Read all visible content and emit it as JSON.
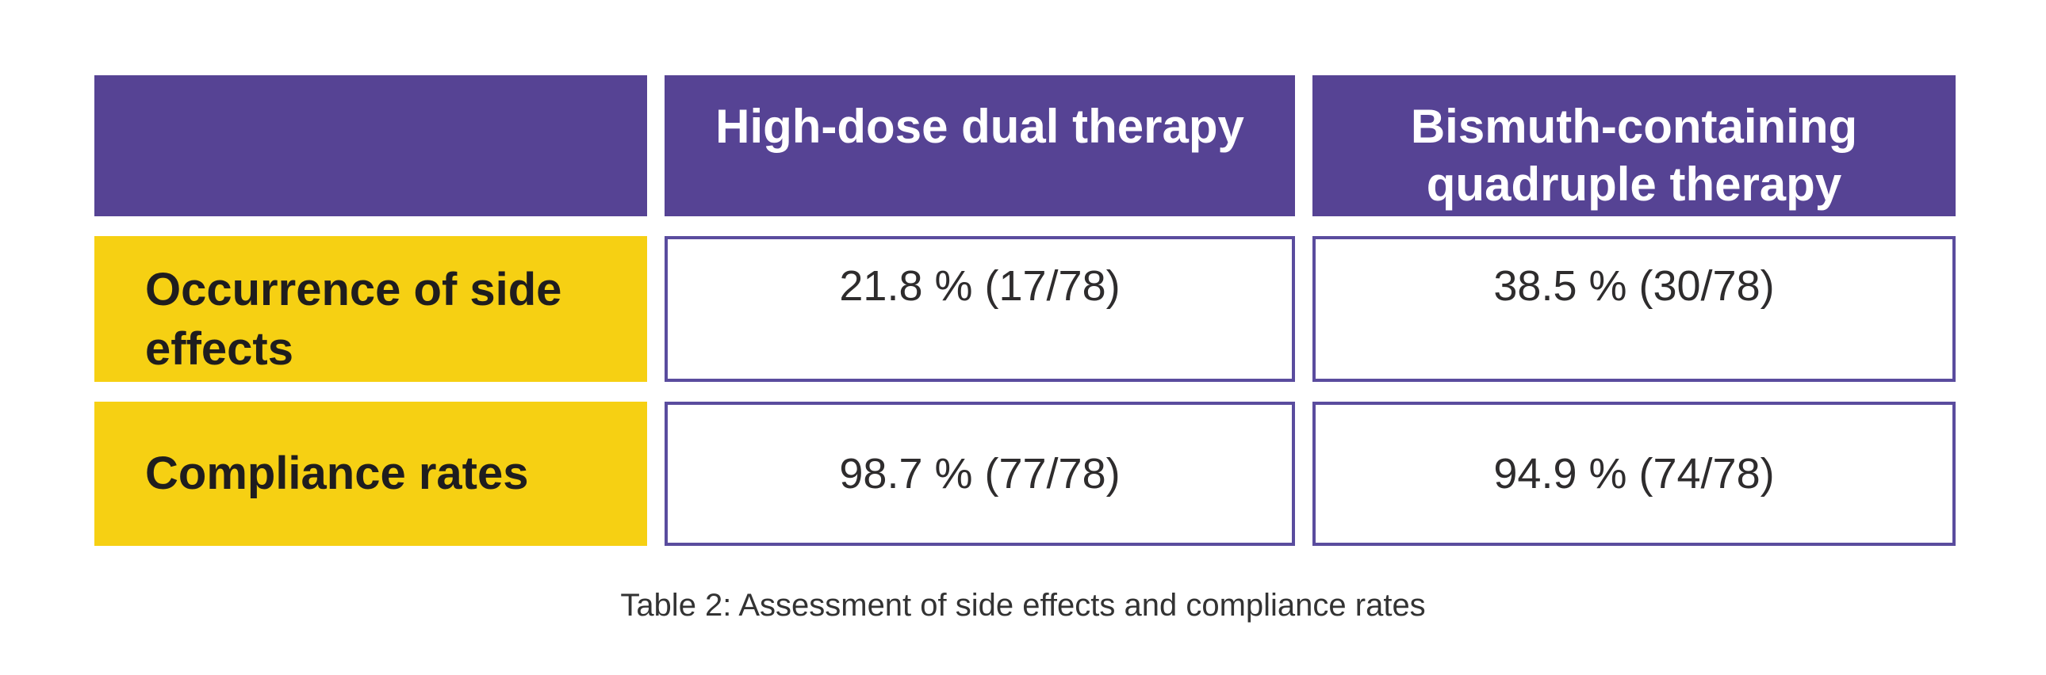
{
  "table": {
    "header": {
      "corner": "",
      "columns": [
        "High-dose dual therapy",
        "Bismuth-containing quadruple therapy"
      ]
    },
    "rows": [
      {
        "label": "Occurrence of side effects",
        "values": [
          "21.8 % (17/78)",
          "38.5 % (30/78)"
        ]
      },
      {
        "label": "Compliance rates",
        "values": [
          "98.7 % (77/78)",
          "94.9 % (74/78)"
        ]
      }
    ],
    "caption": "Table 2: Assessment of side effects and compliance rates"
  },
  "chart_data": {
    "type": "table",
    "title": "Table 2: Assessment of side effects and compliance rates",
    "columns": [
      "",
      "High-dose dual therapy",
      "Bismuth-containing quadruple therapy"
    ],
    "rows": [
      [
        "Occurrence of side effects",
        "21.8 % (17/78)",
        "38.5 % (30/78)"
      ],
      [
        "Compliance rates",
        "98.7 % (77/78)",
        "94.9 % (74/78)"
      ]
    ],
    "series": [
      {
        "name": "Occurrence of side effects (%)",
        "values": [
          21.8,
          38.5
        ],
        "counts": [
          "17/78",
          "30/78"
        ]
      },
      {
        "name": "Compliance rates (%)",
        "values": [
          98.7,
          94.9
        ],
        "counts": [
          "77/78",
          "74/78"
        ]
      }
    ],
    "categories": [
      "High-dose dual therapy",
      "Bismuth-containing quadruple therapy"
    ]
  },
  "colors": {
    "header_bg": "#564394",
    "row_label_bg": "#F6D013",
    "cell_border": "#5A4C9E",
    "header_text": "#FFFFFF",
    "label_text": "#1F1D1E",
    "value_text": "#2E2C2D",
    "caption_text": "#333333",
    "page_bg": "#FFFFFF"
  }
}
